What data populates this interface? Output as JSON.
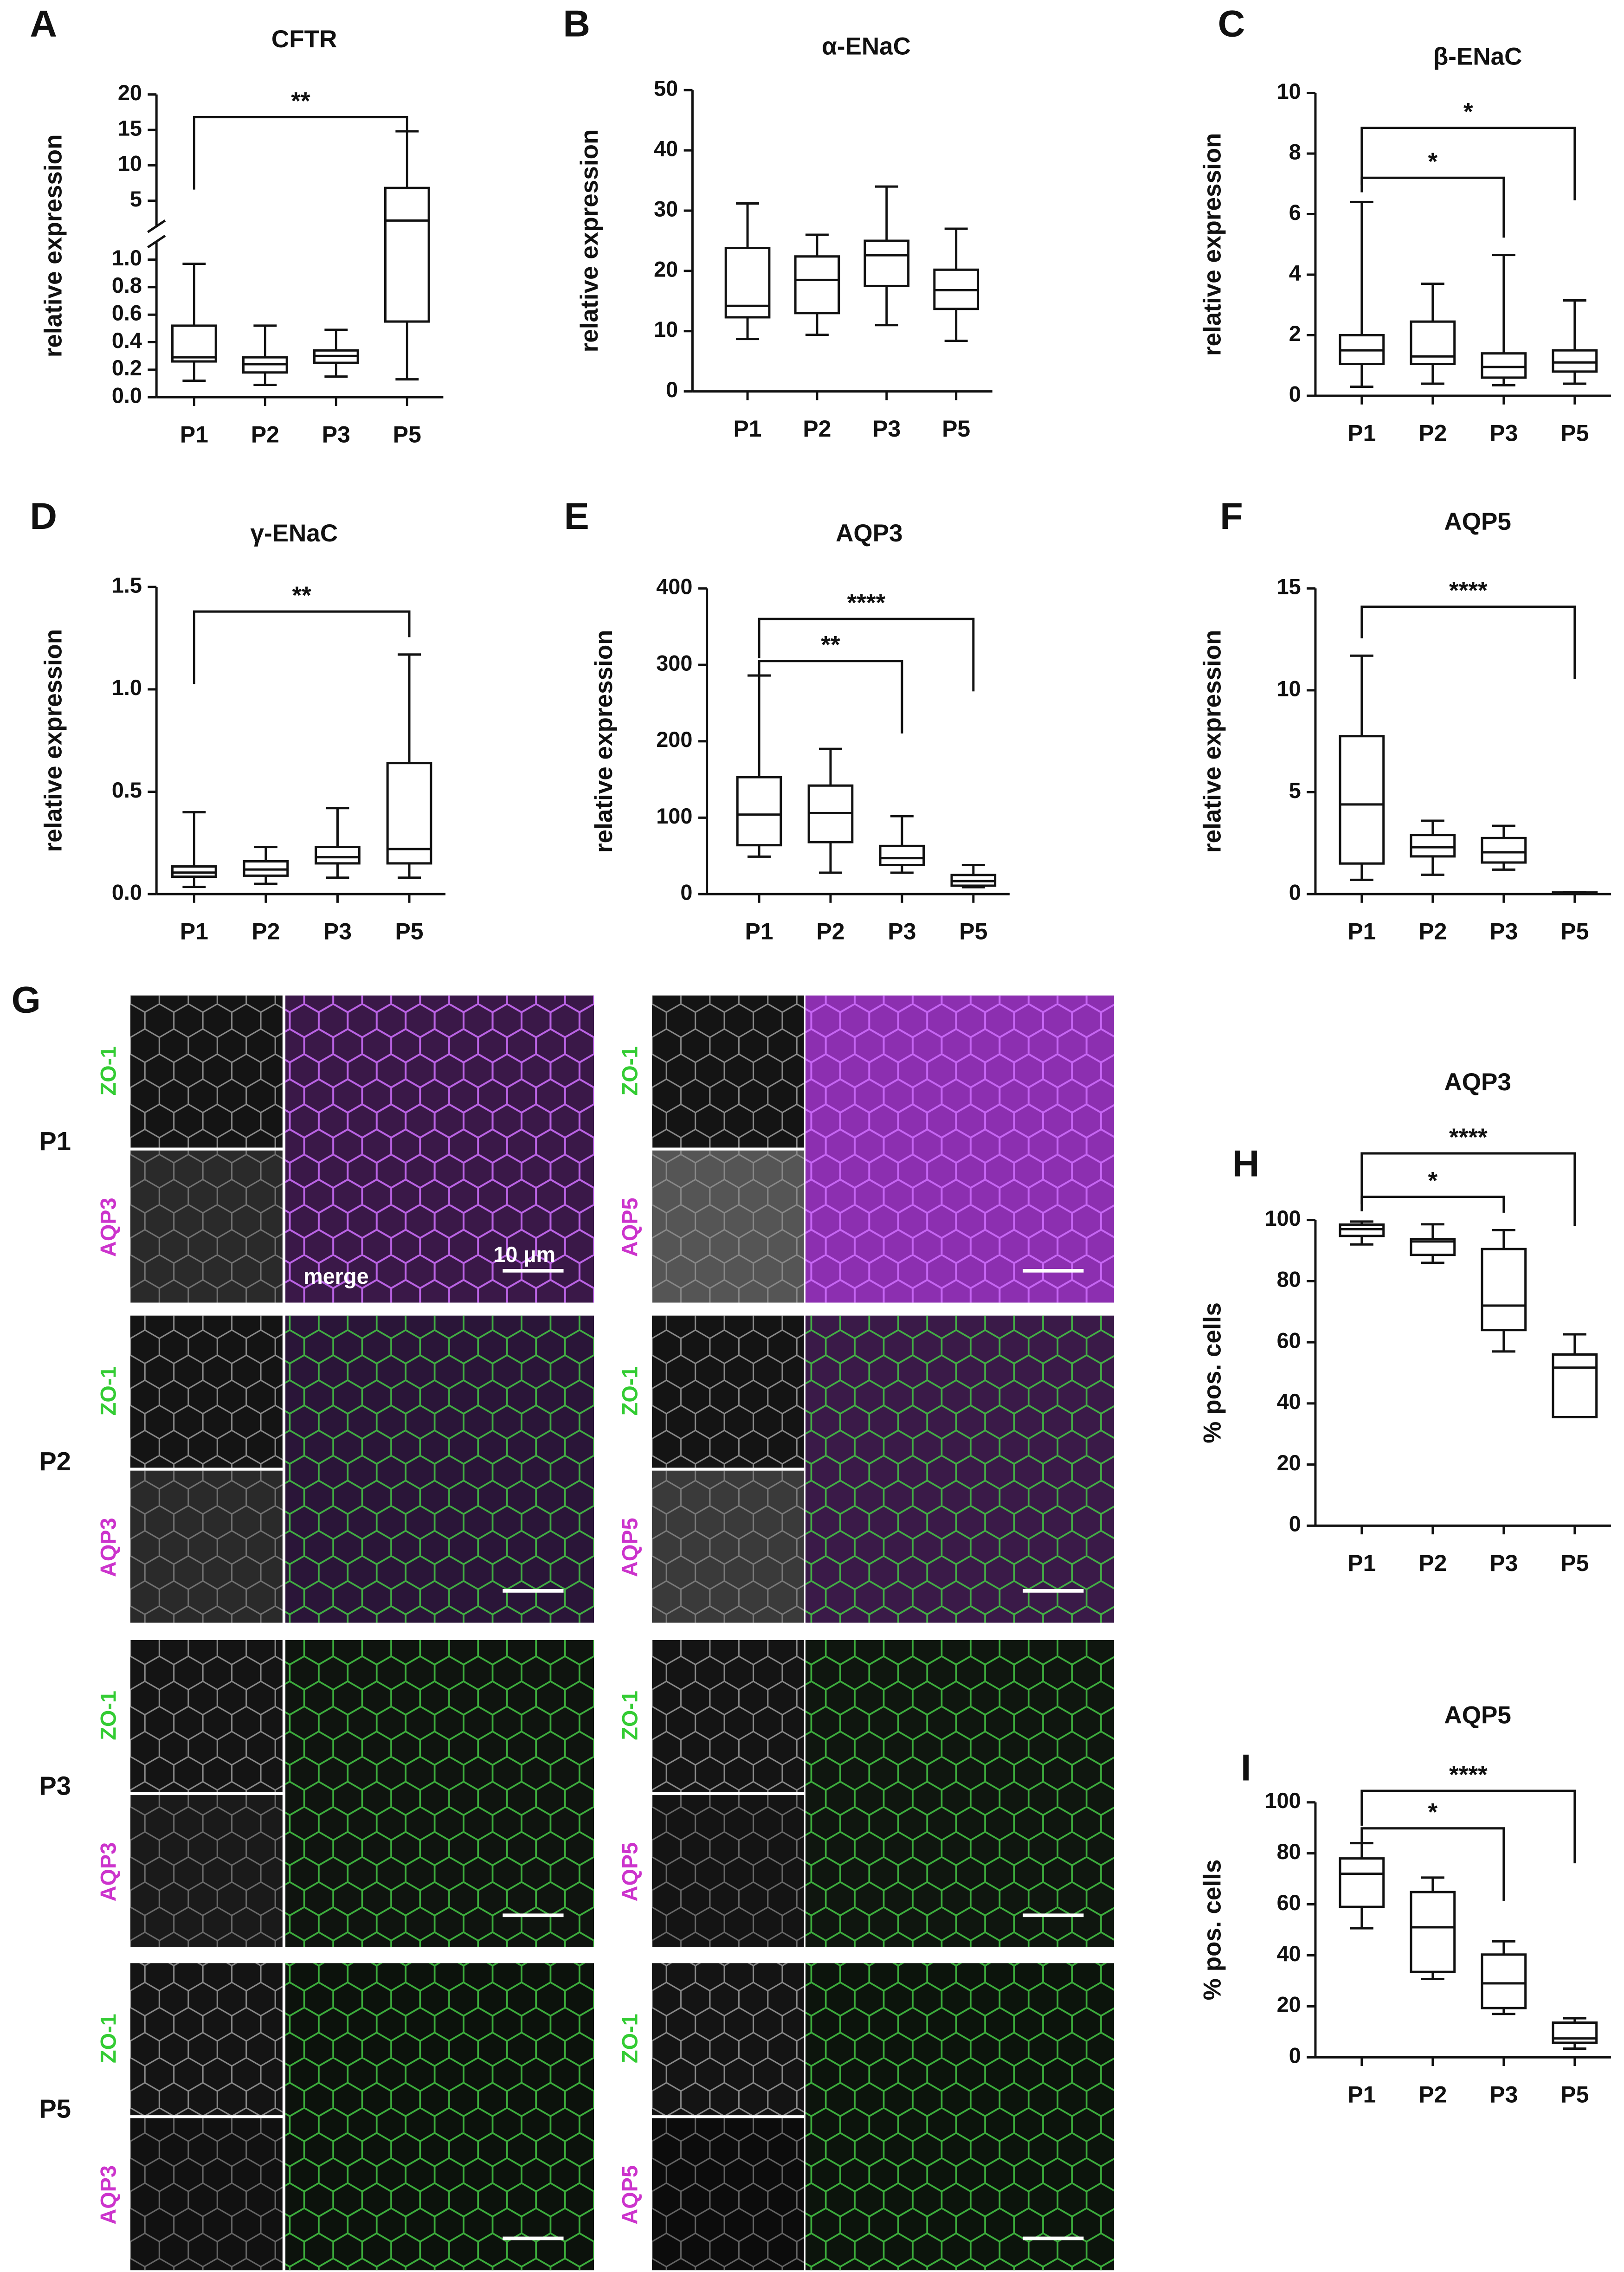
{
  "chart_data": [
    {
      "panel": "A",
      "type": "box",
      "title": "CFTR",
      "ylabel": "relative expression",
      "categories": [
        "P1",
        "P2",
        "P3",
        "P5"
      ],
      "min": [
        0.12,
        0.09,
        0.15,
        0.13
      ],
      "q1": [
        0.26,
        0.18,
        0.25,
        0.55
      ],
      "median": [
        0.29,
        0.24,
        0.3,
        2.2
      ],
      "q3": [
        0.52,
        0.29,
        0.34,
        6.8
      ],
      "max": [
        0.97,
        0.52,
        0.49,
        14.8
      ],
      "ylim": [
        0,
        20
      ],
      "ybreak": [
        1.1,
        2
      ],
      "yticks": [
        {
          "value": 0,
          "label": "0.0"
        },
        0.2,
        0.4,
        0.6,
        0.8,
        {
          "value": 1,
          "label": "1.0"
        },
        5,
        10,
        15,
        20
      ],
      "significance": [
        {
          "from": "P1",
          "to": "P5",
          "label": "**",
          "y": 16.8
        }
      ]
    },
    {
      "panel": "B",
      "type": "box",
      "title": "α-ENaC",
      "ylabel": "relative expression",
      "categories": [
        "P1",
        "P2",
        "P3",
        "P5"
      ],
      "min": [
        8.7,
        9.4,
        11,
        8.4
      ],
      "q1": [
        12.3,
        13,
        17.5,
        13.7
      ],
      "median": [
        14.2,
        18.5,
        22.6,
        16.8
      ],
      "q3": [
        23.8,
        22.4,
        25,
        20.2
      ],
      "max": [
        31.2,
        26,
        34,
        27
      ],
      "ylim": [
        0,
        50
      ],
      "yticks": [
        0,
        10,
        20,
        30,
        40,
        50
      ],
      "significance": []
    },
    {
      "panel": "C",
      "type": "box",
      "title": "β-ENaC",
      "ylabel": "relative expression",
      "categories": [
        "P1",
        "P2",
        "P3",
        "P5"
      ],
      "min": [
        0.3,
        0.4,
        0.35,
        0.4
      ],
      "q1": [
        1.05,
        1.05,
        0.6,
        0.8
      ],
      "median": [
        1.5,
        1.3,
        0.95,
        1.1
      ],
      "q3": [
        2.0,
        2.45,
        1.4,
        1.5
      ],
      "max": [
        6.4,
        3.7,
        4.65,
        3.15
      ],
      "ylim": [
        0,
        10
      ],
      "yticks": [
        0,
        2,
        4,
        6,
        8,
        10
      ],
      "significance": [
        {
          "from": "P1",
          "to": "P3",
          "label": "*",
          "y": 7.2
        },
        {
          "from": "P1",
          "to": "P5",
          "label": "*",
          "y": 8.85
        }
      ]
    },
    {
      "panel": "D",
      "type": "box",
      "title": "γ-ENaC",
      "ylabel": "relative expression",
      "categories": [
        "P1",
        "P2",
        "P3",
        "P5"
      ],
      "min": [
        0.035,
        0.05,
        0.08,
        0.08
      ],
      "q1": [
        0.085,
        0.09,
        0.15,
        0.15
      ],
      "median": [
        0.105,
        0.12,
        0.18,
        0.22
      ],
      "q3": [
        0.135,
        0.16,
        0.23,
        0.64
      ],
      "max": [
        0.4,
        0.23,
        0.42,
        1.17
      ],
      "ylim": [
        0,
        1.5
      ],
      "yticks": [
        {
          "value": 0,
          "label": "0.0"
        },
        0.5,
        {
          "value": 1,
          "label": "1.0"
        },
        1.5
      ],
      "significance": [
        {
          "from": "P1",
          "to": "P5",
          "label": "**",
          "y": 1.38
        }
      ]
    },
    {
      "panel": "E",
      "type": "box",
      "title": "AQP3",
      "ylabel": "relative expression",
      "categories": [
        "P1",
        "P2",
        "P3",
        "P5"
      ],
      "min": [
        49,
        28,
        28,
        9
      ],
      "q1": [
        64,
        68,
        38,
        11
      ],
      "median": [
        104,
        106,
        47,
        17
      ],
      "q3": [
        153,
        142,
        63,
        25
      ],
      "max": [
        286,
        190,
        102,
        38
      ],
      "ylim": [
        0,
        400
      ],
      "yticks": [
        0,
        100,
        200,
        300,
        400
      ],
      "significance": [
        {
          "from": "P1",
          "to": "P3",
          "label": "**",
          "y": 305
        },
        {
          "from": "P1",
          "to": "P5",
          "label": "****",
          "y": 360
        }
      ]
    },
    {
      "panel": "F",
      "type": "box",
      "title": "AQP5",
      "ylabel": "relative expression",
      "categories": [
        "P1",
        "P2",
        "P3",
        "P5"
      ],
      "min": [
        0.7,
        0.95,
        1.2,
        0.02
      ],
      "q1": [
        1.5,
        1.85,
        1.55,
        0.04
      ],
      "median": [
        4.4,
        2.3,
        2.05,
        0.06
      ],
      "q3": [
        7.75,
        2.9,
        2.75,
        0.08
      ],
      "max": [
        11.7,
        3.6,
        3.35,
        0.1
      ],
      "ylim": [
        0,
        15
      ],
      "yticks": [
        0,
        5,
        10,
        15
      ],
      "significance": [
        {
          "from": "P1",
          "to": "P5",
          "label": "****",
          "y": 14.1
        }
      ]
    },
    {
      "panel": "H",
      "type": "box",
      "title": "AQP3",
      "ylabel": "% pos. cells",
      "categories": [
        "P1",
        "P2",
        "P3",
        "P5"
      ],
      "min": [
        92,
        86,
        57,
        35.5
      ],
      "q1": [
        94.8,
        88.6,
        64,
        35.5
      ],
      "median": [
        97,
        93,
        72,
        51.7
      ],
      "q3": [
        98.5,
        93.8,
        90.5,
        56
      ],
      "max": [
        99.5,
        98.6,
        96.7,
        62.6
      ],
      "ylim": [
        0,
        100
      ],
      "yticks": [
        0,
        20,
        40,
        60,
        80,
        100
      ],
      "significance": [
        {
          "from": "P1",
          "to": "P3",
          "label": "*",
          "y": 107.6
        },
        {
          "from": "P1",
          "to": "P5",
          "label": "****",
          "y": 121.8
        }
      ]
    },
    {
      "panel": "I",
      "type": "box",
      "title": "AQP5",
      "ylabel": "% pos. cells",
      "categories": [
        "P1",
        "P2",
        "P3",
        "P5"
      ],
      "min": [
        50.6,
        30.7,
        17,
        3.4
      ],
      "q1": [
        59,
        33.5,
        19.3,
        5.7
      ],
      "median": [
        72,
        51,
        29,
        7.4
      ],
      "q3": [
        78,
        64.8,
        40.3,
        13.6
      ],
      "max": [
        84,
        70.5,
        45.5,
        15.3
      ],
      "ylim": [
        0,
        100
      ],
      "yticks": [
        0,
        20,
        40,
        60,
        80,
        100
      ],
      "significance": [
        {
          "from": "P1",
          "to": "P3",
          "label": "*",
          "y": 89.8
        },
        {
          "from": "P1",
          "to": "P5",
          "label": "****",
          "y": 104.5
        }
      ]
    }
  ],
  "panel_g": {
    "label": "G",
    "rows": [
      "P1",
      "P2",
      "P3",
      "P5"
    ],
    "columns": [
      {
        "stain_top": "ZO-1",
        "stain_bottom": "AQP3"
      },
      {
        "stain_top": "ZO-1",
        "stain_bottom": "AQP5"
      }
    ],
    "merge_label": "merge",
    "scale_label": "10 µm"
  }
}
